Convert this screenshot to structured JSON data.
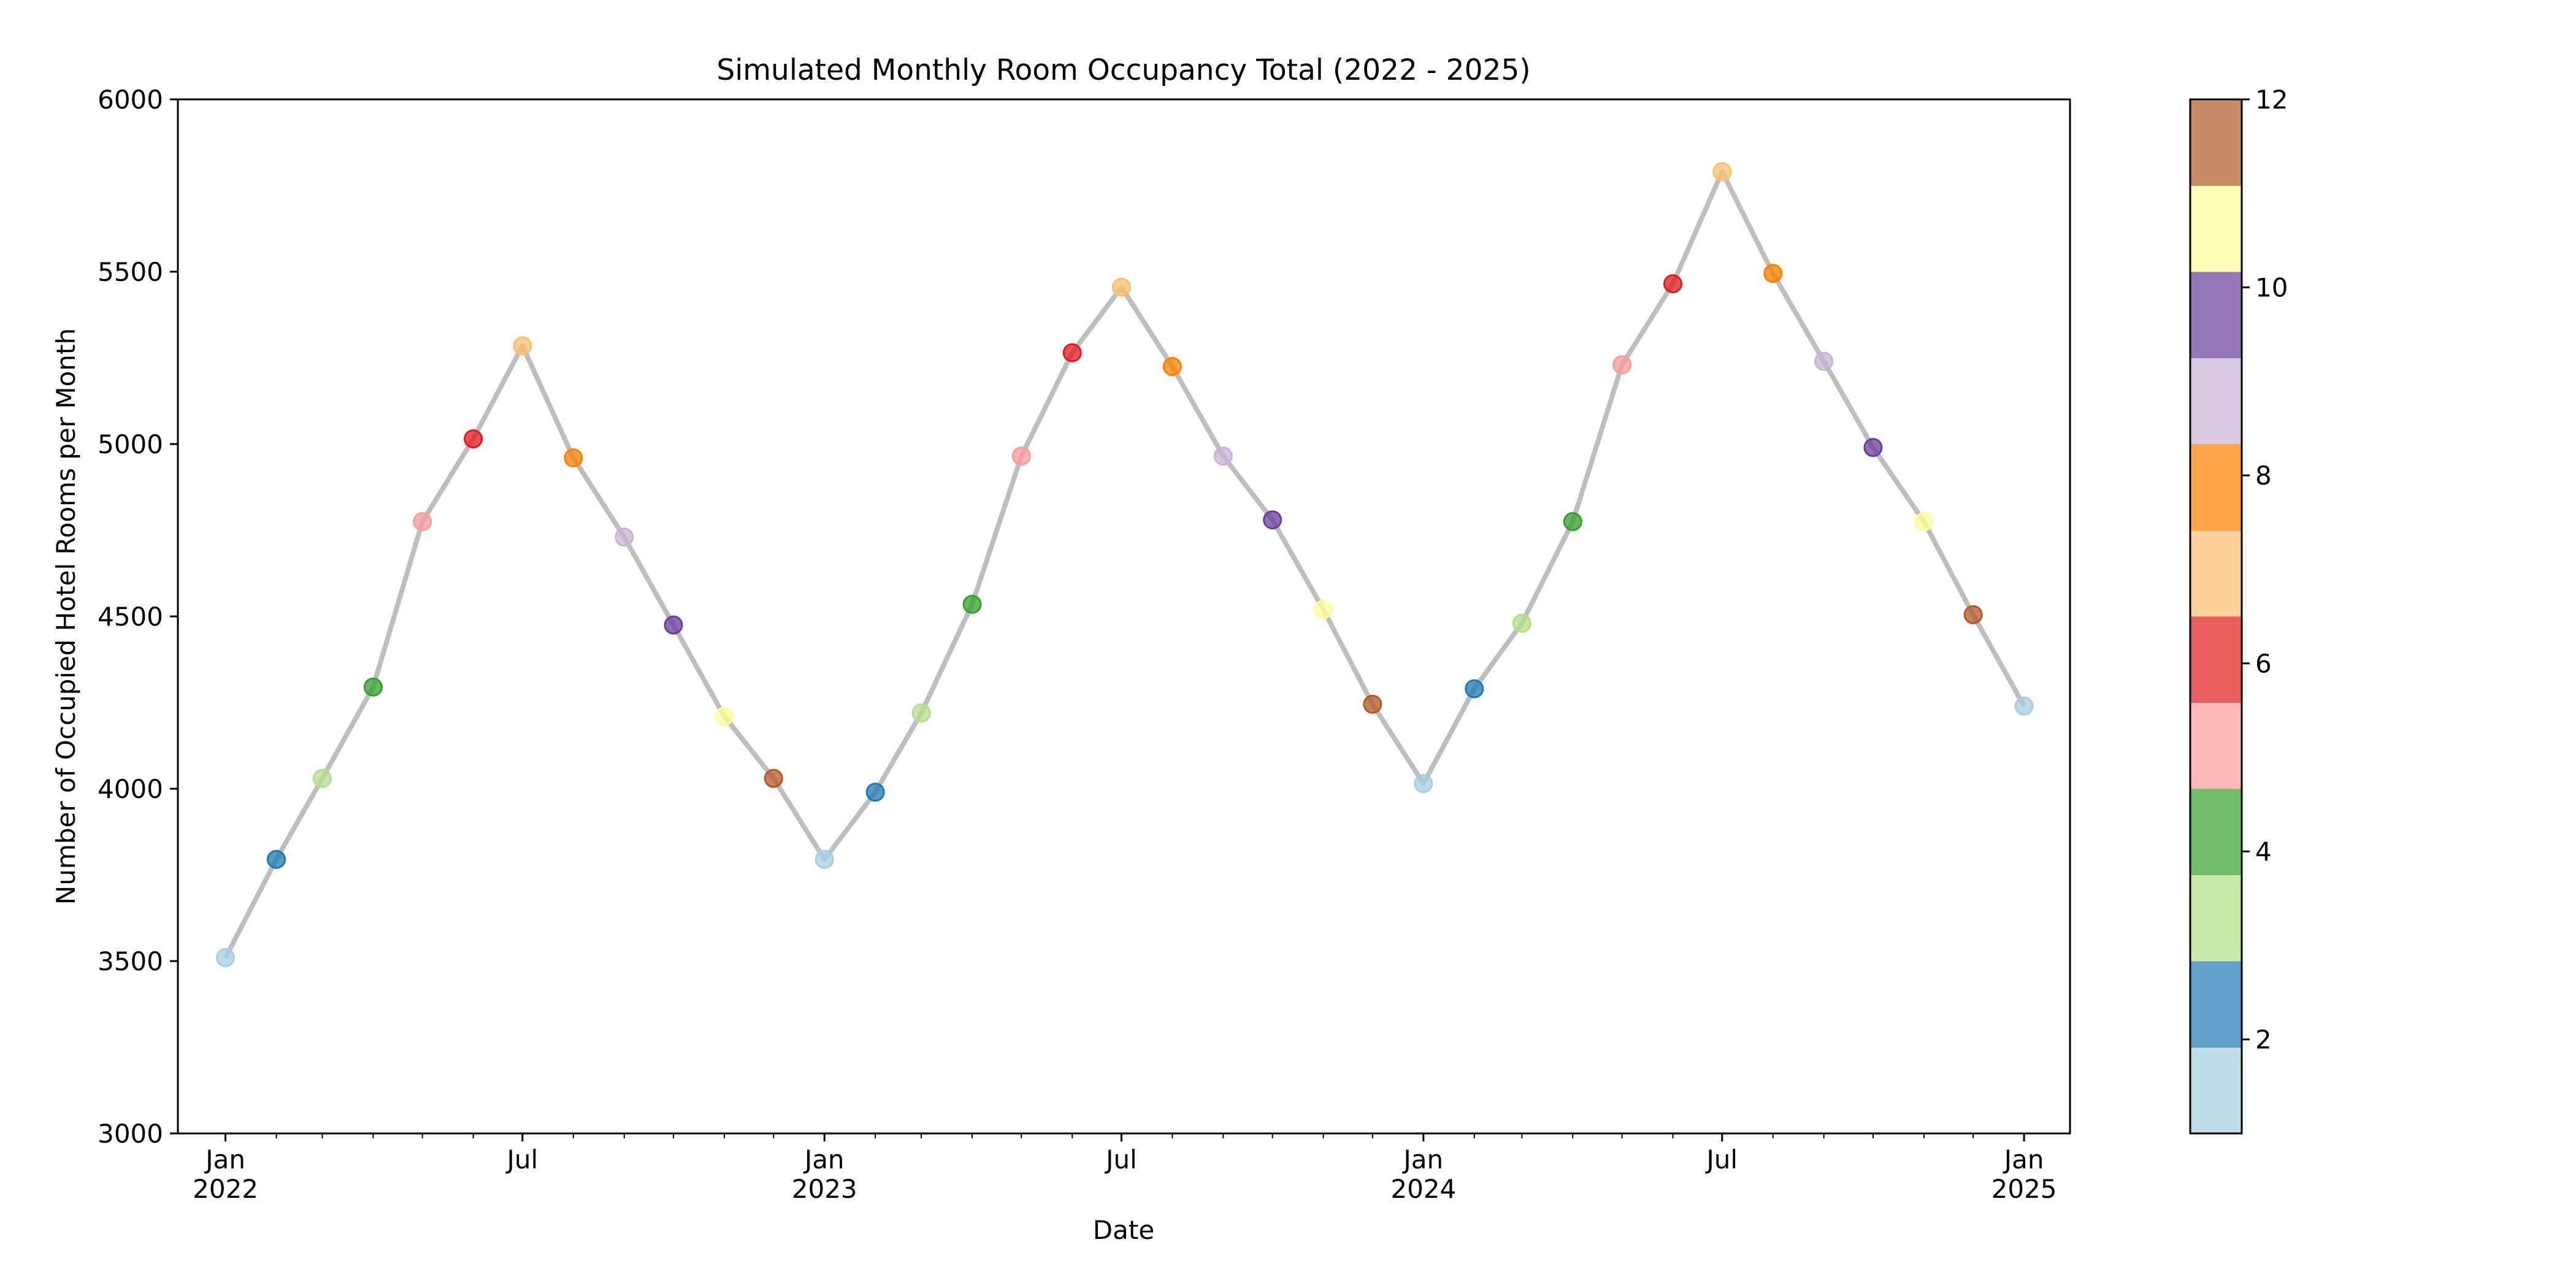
{
  "chart_data": {
    "type": "line",
    "title": "Simulated Monthly Room Occupancy Total (2022 - 2025)",
    "xlabel": "Date",
    "ylabel": "Number of Occupied Hotel Rooms per Month",
    "ylim": [
      3000,
      6000
    ],
    "yticks": [
      3000,
      3500,
      4000,
      4500,
      5000,
      5500,
      6000
    ],
    "xlim": [
      "2021-12-03",
      "2025-01-29"
    ],
    "xticks": [
      {
        "date": "2022-01-01",
        "line1": "Jan",
        "line2": "2022"
      },
      {
        "date": "2022-07-01",
        "line1": "Jul",
        "line2": ""
      },
      {
        "date": "2023-01-01",
        "line1": "Jan",
        "line2": "2023"
      },
      {
        "date": "2023-07-01",
        "line1": "Jul",
        "line2": ""
      },
      {
        "date": "2024-01-01",
        "line1": "Jan",
        "line2": "2024"
      },
      {
        "date": "2024-07-01",
        "line1": "Jul",
        "line2": ""
      },
      {
        "date": "2025-01-01",
        "line1": "Jan",
        "line2": "2025"
      }
    ],
    "grid": false,
    "line_color": "#bebebe",
    "series": [
      {
        "x": [
          "2022-01-01",
          "2022-02-01",
          "2022-03-01",
          "2022-04-01",
          "2022-05-01",
          "2022-06-01",
          "2022-07-01",
          "2022-08-01",
          "2022-09-01",
          "2022-10-01",
          "2022-11-01",
          "2022-12-01",
          "2023-01-01",
          "2023-02-01",
          "2023-03-01",
          "2023-04-01",
          "2023-05-01",
          "2023-06-01",
          "2023-07-01",
          "2023-08-01",
          "2023-09-01",
          "2023-10-01",
          "2023-11-01",
          "2023-12-01",
          "2024-01-01",
          "2024-02-01",
          "2024-03-01",
          "2024-04-01",
          "2024-05-01",
          "2024-06-01",
          "2024-07-01",
          "2024-08-01",
          "2024-09-01",
          "2024-10-01",
          "2024-11-01",
          "2024-12-01",
          "2025-01-01"
        ],
        "values": [
          3510,
          3795,
          4030,
          4295,
          4775,
          5015,
          5285,
          4960,
          4730,
          4475,
          4210,
          4030,
          3795,
          3990,
          4220,
          4535,
          4965,
          5265,
          5455,
          5225,
          4965,
          4780,
          4520,
          4245,
          4015,
          4290,
          4480,
          4775,
          5230,
          5465,
          5790,
          5495,
          5240,
          4990,
          4775,
          4505,
          4240
        ],
        "month": [
          1,
          2,
          3,
          4,
          5,
          6,
          7,
          8,
          9,
          10,
          11,
          12,
          1,
          2,
          3,
          4,
          5,
          6,
          7,
          8,
          9,
          10,
          11,
          12,
          1,
          2,
          3,
          4,
          5,
          6,
          7,
          8,
          9,
          10,
          11,
          12,
          1
        ]
      }
    ],
    "colorbar": {
      "range": [
        1,
        12
      ],
      "ticks": [
        2,
        4,
        6,
        8,
        10,
        12
      ],
      "colors": [
        "#a6cee3",
        "#1f78b4",
        "#b2df8a",
        "#33a02c",
        "#fb9a99",
        "#e31a1c",
        "#fdbf6f",
        "#ff7f00",
        "#cab2d6",
        "#6a3d9a",
        "#ffff99",
        "#b15928"
      ]
    }
  }
}
